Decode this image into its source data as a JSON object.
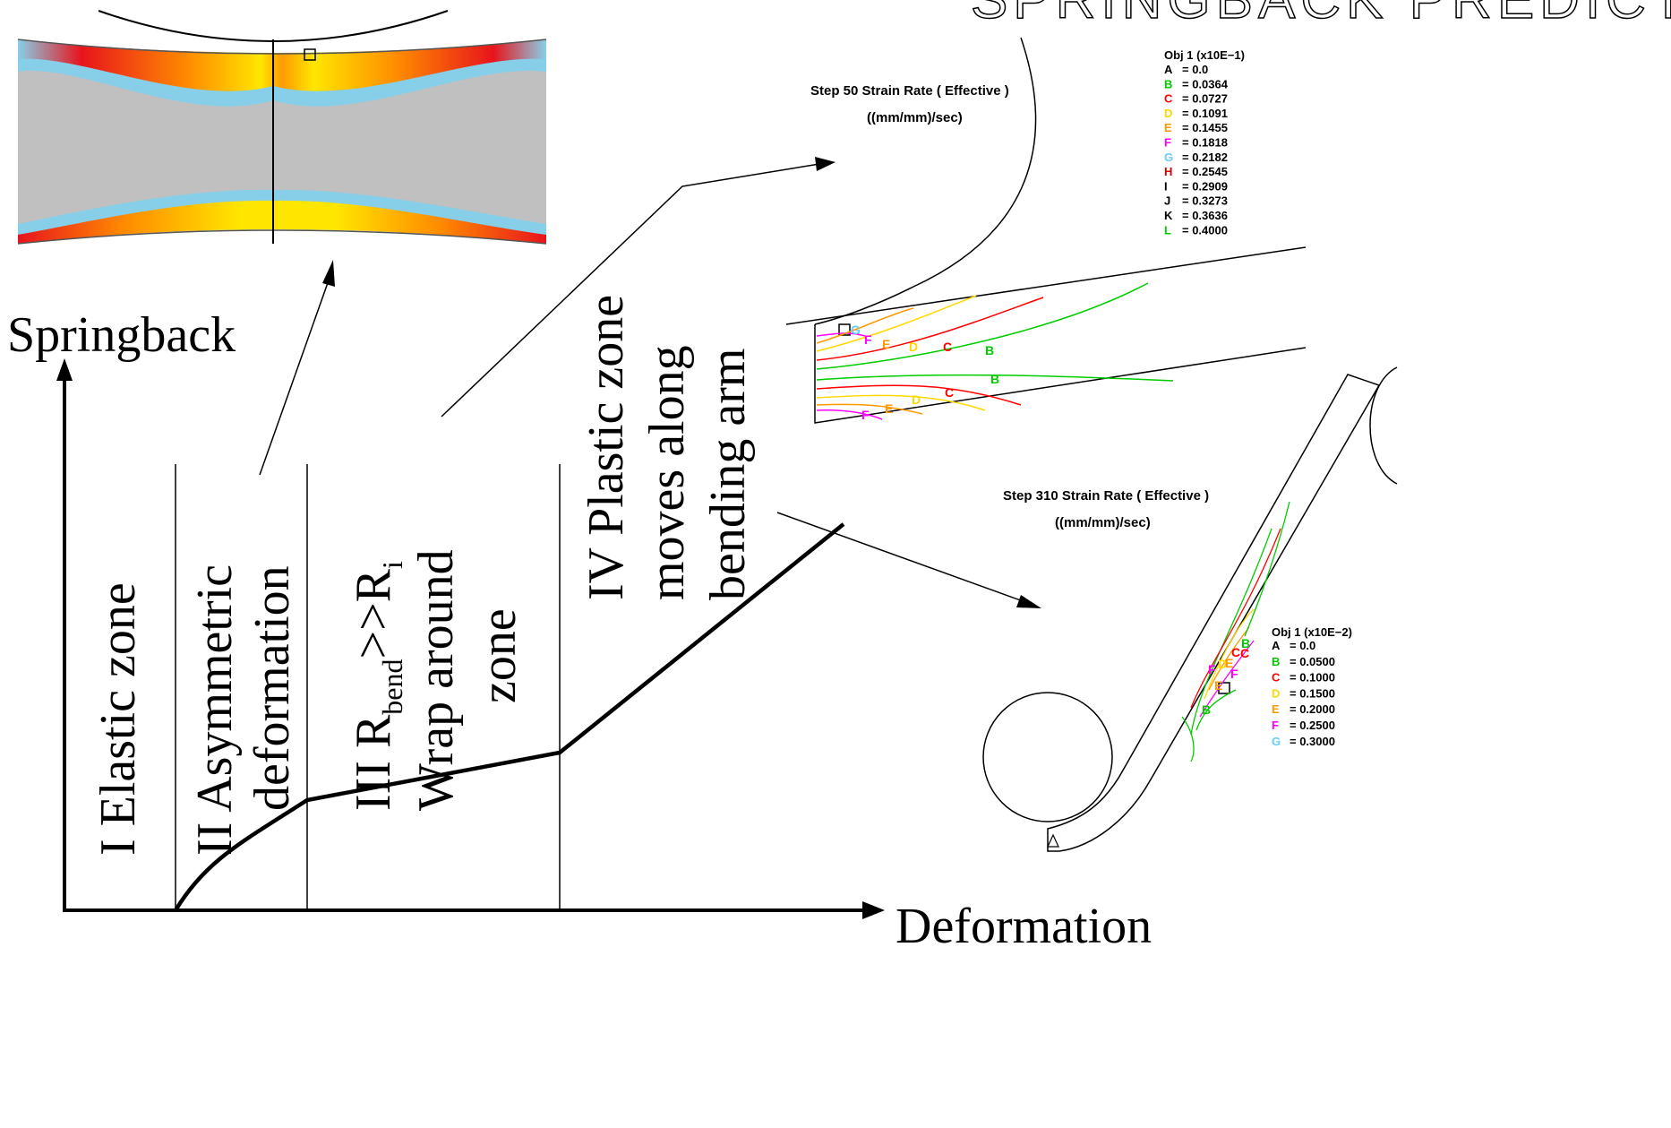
{
  "header": {
    "partial_title": "SPRINGBACK PREDICTION"
  },
  "graph": {
    "y_axis_label": "Springback",
    "x_axis_label": "Deformation",
    "zones": [
      {
        "id": "I",
        "lines": [
          "I  Elastic zone"
        ]
      },
      {
        "id": "II",
        "lines": [
          "II  Asymmetric",
          "deformation"
        ]
      },
      {
        "id": "III",
        "lines": [
          "III  R",
          "bend",
          ">>R",
          "i",
          "Wrap around",
          "zone"
        ]
      },
      {
        "id": "IV",
        "lines": [
          "IV Plastic zone",
          "moves along",
          "bending arm"
        ]
      }
    ]
  },
  "sim_step50": {
    "title": "Step 50  Strain Rate ( Effective )",
    "units": "((mm/mm)/sec)",
    "legend_header": "Obj  1 (x10E−1)",
    "legend": [
      {
        "key": "A",
        "value": "= 0.0",
        "color": "#000000"
      },
      {
        "key": "B",
        "value": "= 0.0364",
        "color": "#00cc00"
      },
      {
        "key": "C",
        "value": "= 0.0727",
        "color": "#ff0000"
      },
      {
        "key": "D",
        "value": "= 0.1091",
        "color": "#ffd800"
      },
      {
        "key": "E",
        "value": "= 0.1455",
        "color": "#ff9900"
      },
      {
        "key": "F",
        "value": "= 0.1818",
        "color": "#ff00ff"
      },
      {
        "key": "G",
        "value": "= 0.2182",
        "color": "#66ccff"
      },
      {
        "key": "H",
        "value": "= 0.2545",
        "color": "#cc0000"
      },
      {
        "key": "I",
        "value": "= 0.2909",
        "color": "#000000"
      },
      {
        "key": "J",
        "value": "= 0.3273",
        "color": "#000000"
      },
      {
        "key": "K",
        "value": "= 0.3636",
        "color": "#000000"
      },
      {
        "key": "L",
        "value": "= 0.4000",
        "color": "#00cc00"
      }
    ],
    "contour_labels": [
      "G",
      "F",
      "E",
      "D",
      "C",
      "B",
      "B",
      "C",
      "D",
      "E",
      "F"
    ]
  },
  "sim_step310": {
    "title": "Step 310  Strain Rate ( Effective )",
    "units": "((mm/mm)/sec)",
    "legend_header": "Obj  1 (x10E−2)",
    "legend": [
      {
        "key": "A",
        "value": "= 0.0",
        "color": "#000000"
      },
      {
        "key": "B",
        "value": "= 0.0500",
        "color": "#00cc00"
      },
      {
        "key": "C",
        "value": "= 0.1000",
        "color": "#ff0000"
      },
      {
        "key": "D",
        "value": "= 0.1500",
        "color": "#ffd800"
      },
      {
        "key": "E",
        "value": "= 0.2000",
        "color": "#ff9900"
      },
      {
        "key": "F",
        "value": "= 0.2500",
        "color": "#ff00ff"
      },
      {
        "key": "G",
        "value": "= 0.3000",
        "color": "#66ccff"
      }
    ],
    "contour_labels": [
      "B",
      "C",
      "C",
      "F",
      "D",
      "E",
      "F",
      "E",
      "B"
    ]
  },
  "colors": {
    "heat_blue": "#87cfe8",
    "heat_red": "#e8141c",
    "heat_orange": "#ff8a00",
    "heat_yellow": "#ffe600",
    "heat_gray": "#c0c0c0"
  }
}
